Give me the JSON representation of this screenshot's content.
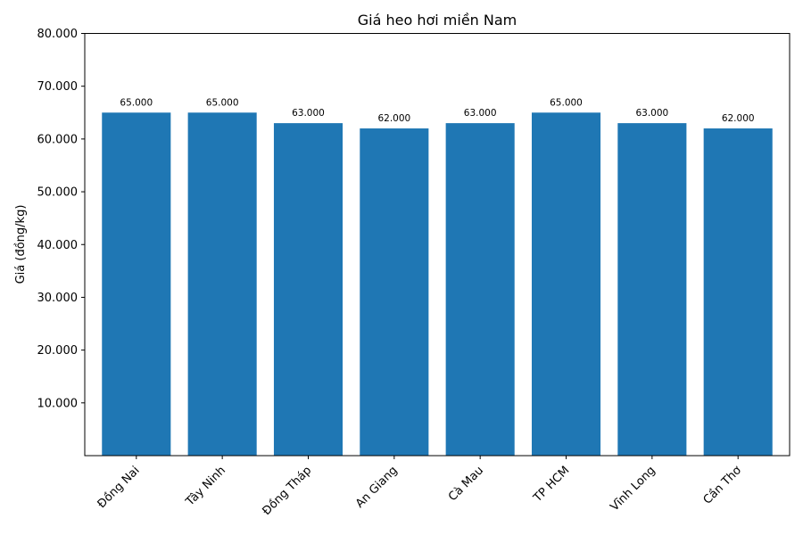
{
  "chart_data": {
    "type": "bar",
    "title": "Giá heo hơi miền Nam",
    "xlabel": "",
    "ylabel": "Giá (đồng/kg)",
    "categories": [
      "Đồng Nai",
      "Tây Ninh",
      "Đồng Tháp",
      "An Giang",
      "Cà Mau",
      "TP HCM",
      "Vĩnh Long",
      "Cần Thơ"
    ],
    "values": [
      65000,
      65000,
      63000,
      62000,
      63000,
      65000,
      63000,
      62000
    ],
    "value_labels": [
      "65.000",
      "65.000",
      "63.000",
      "62.000",
      "63.000",
      "65.000",
      "63.000",
      "62.000"
    ],
    "ylim": [
      0,
      80000
    ],
    "yticks": [
      10000,
      20000,
      30000,
      40000,
      50000,
      60000,
      70000,
      80000
    ],
    "ytick_labels": [
      "10.000",
      "20.000",
      "30.000",
      "40.000",
      "50.000",
      "60.000",
      "70.000",
      "80.000"
    ],
    "grid": false,
    "bar_color": "#1f77b4"
  }
}
